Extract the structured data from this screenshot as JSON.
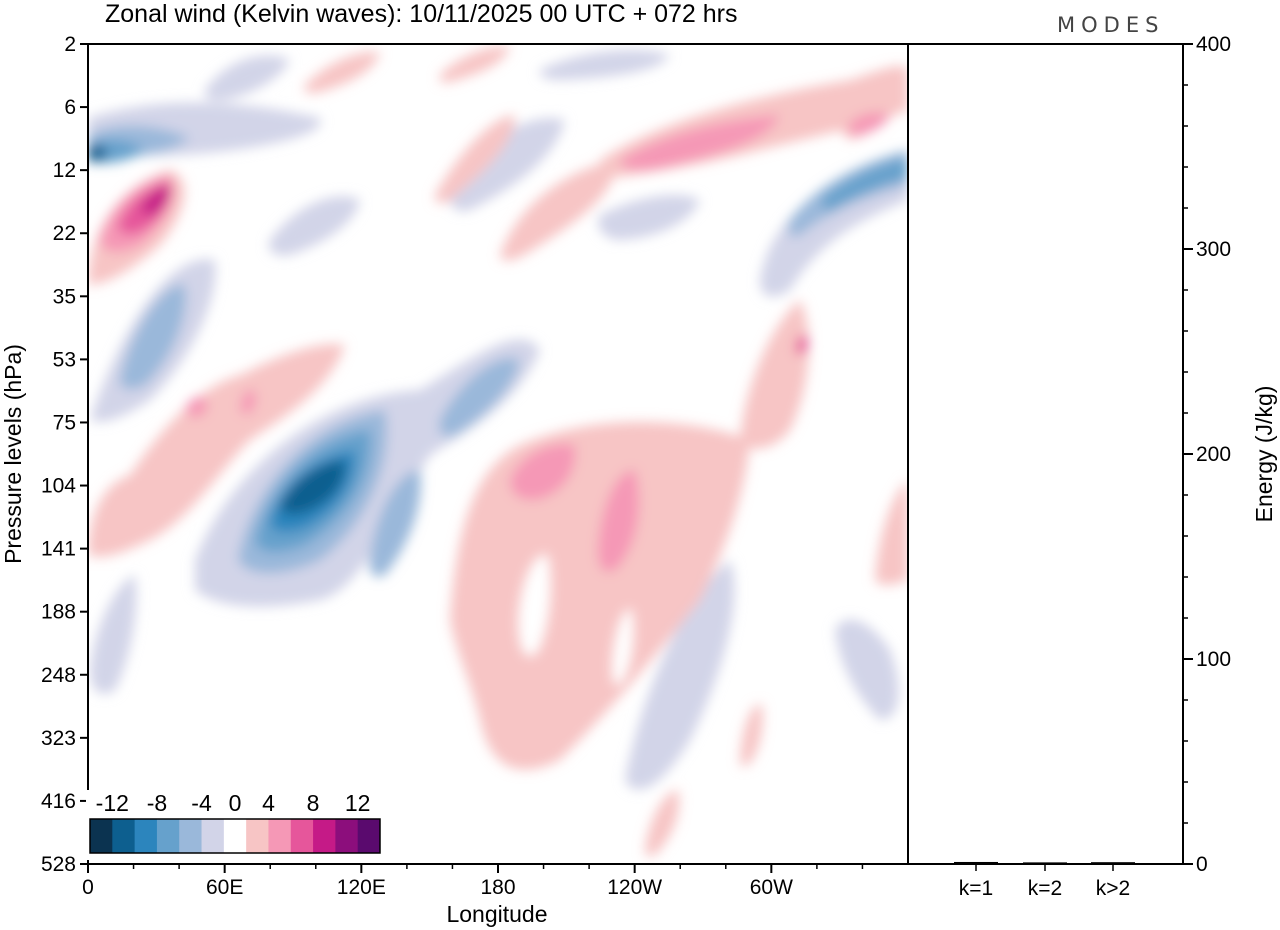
{
  "chart_data": {
    "type": "heatmap",
    "title": "Zonal wind (Kelvin waves):  10/11/2025  00 UTC  + 072 hrs",
    "brand": "MODES",
    "xlabel": "Longitude",
    "ylabel": "Pressure levels (hPa)",
    "x_ticks": [
      "0",
      "60E",
      "120E",
      "180",
      "120W",
      "60W"
    ],
    "x_tick_degrees": [
      0,
      60,
      120,
      180,
      240,
      300
    ],
    "xlim": [
      0,
      360
    ],
    "y_ticks": [
      "2",
      "6",
      "12",
      "22",
      "35",
      "53",
      "75",
      "104",
      "141",
      "188",
      "248",
      "323",
      "416",
      "528"
    ],
    "y_scale": "categorical-levels",
    "colorbar": {
      "labels": [
        "-12",
        "-8",
        "-4",
        "0",
        "4",
        "8",
        "12"
      ],
      "label_values": [
        -12,
        -8,
        -4,
        0,
        4,
        8,
        12
      ],
      "bounds": [
        -14,
        -12,
        -10,
        -8,
        -6,
        -4,
        -2,
        2,
        4,
        6,
        8,
        10,
        12,
        14
      ],
      "colors": [
        "#0b3350",
        "#0d5f8f",
        "#2c85bd",
        "#66a1cc",
        "#9ab8da",
        "#d2d4e8",
        "#ffffff",
        "#f7c5c5",
        "#f598b6",
        "#e6569b",
        "#c51a87",
        "#8c0e7c",
        "#5a0a6e"
      ]
    },
    "contour_features": [
      {
        "sign": "negative",
        "magnitude": -14,
        "lon": 110,
        "level": "104"
      },
      {
        "sign": "negative",
        "magnitude": -12,
        "lon": 5,
        "level": "12"
      },
      {
        "sign": "negative",
        "magnitude": -12,
        "lon": 355,
        "level": "12"
      },
      {
        "sign": "negative",
        "magnitude": -8,
        "lon": 30,
        "level": "53"
      },
      {
        "sign": "negative",
        "magnitude": -8,
        "lon": 130,
        "level": "141"
      },
      {
        "sign": "positive",
        "magnitude": 12,
        "lon": 30,
        "level": "22"
      },
      {
        "sign": "positive",
        "magnitude": 8,
        "lon": 200,
        "level": "104"
      },
      {
        "sign": "positive",
        "magnitude": 8,
        "lon": 235,
        "level": "141"
      },
      {
        "sign": "positive",
        "magnitude": 8,
        "lon": 255,
        "level": "12"
      },
      {
        "sign": "positive",
        "magnitude": 4,
        "lon": 225,
        "level": "248"
      }
    ],
    "side_panel": {
      "type": "bar",
      "ylabel": "Energy (J/kg)",
      "categories": [
        "k=1",
        "k=2",
        "k>2"
      ],
      "values": [
        0.5,
        0.3,
        0.4
      ],
      "ylim": [
        0,
        400
      ],
      "y_ticks": [
        0,
        100,
        200,
        300,
        400
      ],
      "y_tick_labels": [
        "0",
        "100",
        "200",
        "300",
        "400"
      ]
    }
  }
}
